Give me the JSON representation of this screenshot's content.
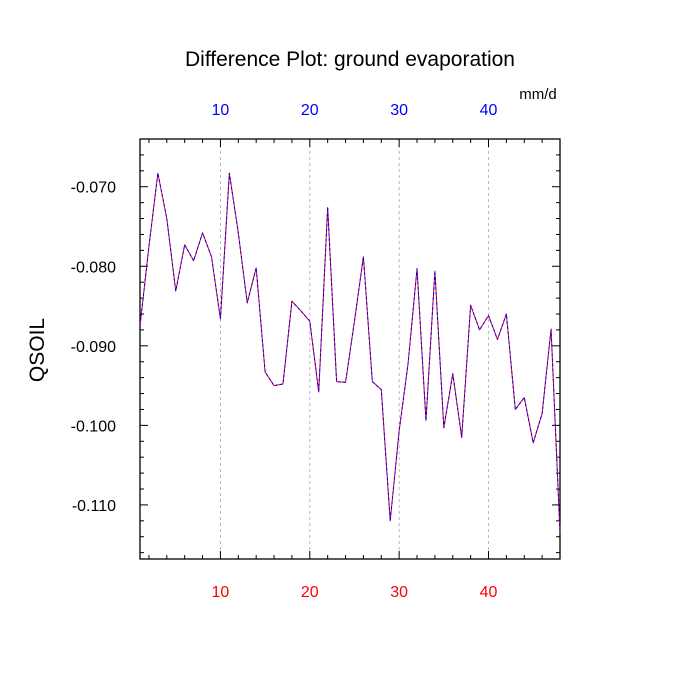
{
  "chart_data": {
    "type": "line",
    "title": "Difference Plot: ground evaporation",
    "units": "mm/d",
    "ylabel": "QSOIL",
    "xlim": [
      1,
      48
    ],
    "ylim": [
      -0.1168,
      -0.064
    ],
    "x_ticks": [
      10,
      20,
      30,
      40
    ],
    "x_tick_labels": [
      "10",
      "20",
      "30",
      "40"
    ],
    "y_ticks": [
      -0.07,
      -0.08,
      -0.09,
      -0.1,
      -0.11
    ],
    "y_tick_labels": [
      "-0.070",
      "-0.080",
      "-0.090",
      "-0.100",
      "-0.110"
    ],
    "grid_x": true,
    "grid_y": false,
    "colors": {
      "bottom_ticks": "#ff0000",
      "top_ticks": "#0000ff",
      "line_primary": "#ff0000",
      "line_secondary": "#0000ff",
      "grid": "#aaaaaa"
    },
    "x": [
      1,
      2,
      3,
      4,
      5,
      6,
      7,
      8,
      9,
      10,
      11,
      12,
      13,
      14,
      15,
      16,
      17,
      18,
      19,
      20,
      21,
      22,
      23,
      24,
      25,
      26,
      27,
      28,
      29,
      30,
      31,
      32,
      33,
      34,
      35,
      36,
      37,
      38,
      39,
      40,
      41,
      42,
      43,
      44,
      45,
      46,
      47,
      48
    ],
    "values": [
      -0.0875,
      -0.0775,
      -0.0683,
      -0.074,
      -0.0831,
      -0.0773,
      -0.0793,
      -0.0758,
      -0.0788,
      -0.0866,
      -0.0683,
      -0.0758,
      -0.0846,
      -0.0802,
      -0.0933,
      -0.095,
      -0.0948,
      -0.0844,
      -0.0856,
      -0.0869,
      -0.0958,
      -0.0726,
      -0.0945,
      -0.0946,
      -0.0869,
      -0.0788,
      -0.0945,
      -0.0955,
      -0.112,
      -0.1007,
      -0.0922,
      -0.0803,
      -0.0994,
      -0.0806,
      -0.1003,
      -0.0935,
      -0.1015,
      -0.0849,
      -0.088,
      -0.0862,
      -0.0892,
      -0.086,
      -0.098,
      -0.0965,
      -0.1022,
      -0.0985,
      -0.0879,
      -0.1135
    ]
  }
}
